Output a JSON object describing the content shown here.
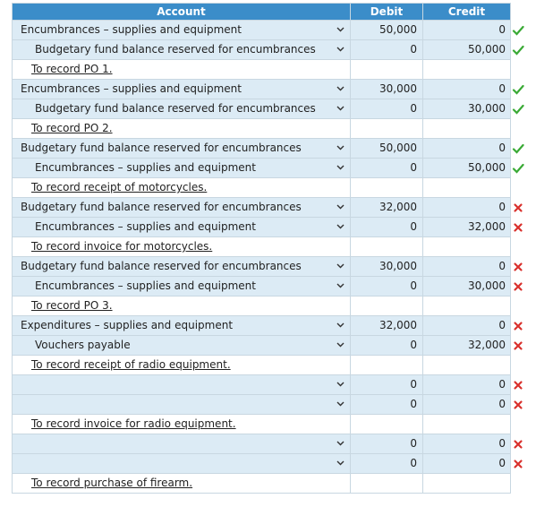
{
  "headers": {
    "account": "Account",
    "debit": "Debit",
    "credit": "Credit"
  },
  "rows": [
    {
      "kind": "entry",
      "account": "Encumbrances – supplies and equipment",
      "indent": 0,
      "debit": "50,000",
      "credit": "0",
      "status": "check"
    },
    {
      "kind": "entry",
      "account": "Budgetary fund balance reserved for encumbrances",
      "indent": 1,
      "debit": "0",
      "credit": "50,000",
      "status": "check"
    },
    {
      "kind": "note",
      "text": "To record PO 1."
    },
    {
      "kind": "entry",
      "account": "Encumbrances – supplies and equipment",
      "indent": 0,
      "debit": "30,000",
      "credit": "0",
      "status": "check"
    },
    {
      "kind": "entry",
      "account": "Budgetary fund balance reserved for encumbrances",
      "indent": 1,
      "debit": "0",
      "credit": "30,000",
      "status": "check"
    },
    {
      "kind": "note",
      "text": "To record PO 2."
    },
    {
      "kind": "entry",
      "account": "Budgetary fund balance reserved for encumbrances",
      "indent": 0,
      "debit": "50,000",
      "credit": "0",
      "status": "check"
    },
    {
      "kind": "entry",
      "account": "Encumbrances – supplies and equipment",
      "indent": 1,
      "debit": "0",
      "credit": "50,000",
      "status": "check"
    },
    {
      "kind": "note",
      "text": "To record receipt of motorcycles."
    },
    {
      "kind": "entry",
      "account": "Budgetary fund balance reserved for encumbrances",
      "indent": 0,
      "debit": "32,000",
      "credit": "0",
      "status": "cross"
    },
    {
      "kind": "entry",
      "account": "Encumbrances – supplies and equipment",
      "indent": 1,
      "debit": "0",
      "credit": "32,000",
      "status": "cross"
    },
    {
      "kind": "note",
      "text": "To record invoice for motorcycles."
    },
    {
      "kind": "entry",
      "account": "Budgetary fund balance reserved for encumbrances",
      "indent": 0,
      "debit": "30,000",
      "credit": "0",
      "status": "cross"
    },
    {
      "kind": "entry",
      "account": "Encumbrances – supplies and equipment",
      "indent": 1,
      "debit": "0",
      "credit": "30,000",
      "status": "cross"
    },
    {
      "kind": "note",
      "text": "To record PO 3."
    },
    {
      "kind": "entry",
      "account": "Expenditures – supplies and equipment",
      "indent": 0,
      "debit": "32,000",
      "credit": "0",
      "status": "cross"
    },
    {
      "kind": "entry",
      "account": "Vouchers payable",
      "indent": 1,
      "debit": "0",
      "credit": "32,000",
      "status": "cross"
    },
    {
      "kind": "note",
      "text": "To record receipt of radio equipment."
    },
    {
      "kind": "entry",
      "account": "",
      "indent": 0,
      "debit": "0",
      "credit": "0",
      "status": "cross"
    },
    {
      "kind": "entry",
      "account": "",
      "indent": 1,
      "debit": "0",
      "credit": "0",
      "status": "cross"
    },
    {
      "kind": "note",
      "text": "To record invoice for radio equipment."
    },
    {
      "kind": "entry",
      "account": "",
      "indent": 0,
      "debit": "0",
      "credit": "0",
      "status": "cross"
    },
    {
      "kind": "entry",
      "account": "",
      "indent": 1,
      "debit": "0",
      "credit": "0",
      "status": "cross"
    },
    {
      "kind": "note",
      "text": "To record purchase of firearm."
    }
  ],
  "colors": {
    "header_bg": "#3b8dc9",
    "entry_bg": "#dcebf5",
    "check": "#3aaa35",
    "cross": "#d9302c"
  },
  "icons": {
    "check": "checkmark-icon",
    "cross": "cross-icon",
    "dropdown": "chevron-down-icon"
  }
}
